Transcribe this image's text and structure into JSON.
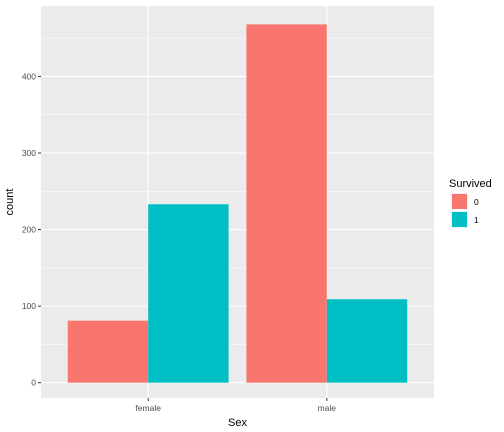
{
  "chart_data": {
    "type": "bar",
    "categories": [
      "female",
      "male"
    ],
    "series": [
      {
        "name": "0",
        "values": [
          81,
          468
        ]
      },
      {
        "name": "1",
        "values": [
          233,
          109
        ]
      }
    ],
    "title": "",
    "xlabel": "Sex",
    "ylabel": "count",
    "ylim": [
      -20,
      492
    ],
    "yticks": [
      0,
      100,
      200,
      300,
      400
    ],
    "grid": true,
    "legend": {
      "title": "Survived",
      "placement": "right"
    },
    "colors": {
      "series0": "#F8766D",
      "series1": "#00BFC4",
      "panel": "#EBEBEB",
      "grid": "#FFFFFF"
    }
  }
}
